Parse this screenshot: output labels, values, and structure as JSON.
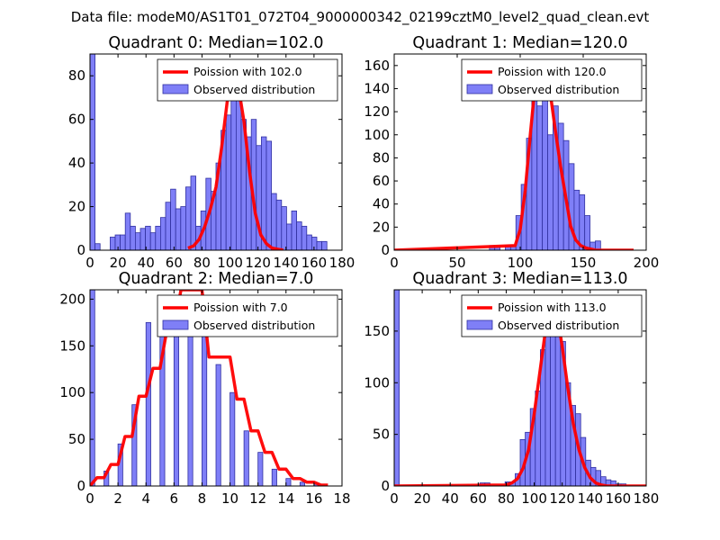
{
  "figure_title": "Data file: modeM0/AS1T01_072T04_9000000342_02199cztM0_level2_quad_clean.evt",
  "colors": {
    "bar_fill": "#7f7ff7",
    "bar_edge": "#3030a0",
    "poisson_line": "#ff0000"
  },
  "chart_data": [
    {
      "type": "bar",
      "title": "Quadrant 0: Median=102.0",
      "xlim": [
        0,
        180
      ],
      "ylim": [
        0,
        90
      ],
      "xticks": [
        0,
        20,
        40,
        60,
        80,
        100,
        120,
        140,
        160,
        180
      ],
      "yticks": [
        0,
        20,
        40,
        60,
        80
      ],
      "bin_width": 3.6,
      "legend": [
        "Poission with 102.0",
        "Observed distribution"
      ],
      "bars": [
        [
          0,
          90
        ],
        [
          3.6,
          3
        ],
        [
          14.4,
          6
        ],
        [
          18,
          7
        ],
        [
          21.6,
          7
        ],
        [
          25.2,
          17
        ],
        [
          28.8,
          11
        ],
        [
          32.4,
          8
        ],
        [
          36,
          10
        ],
        [
          39.6,
          11
        ],
        [
          43.2,
          8
        ],
        [
          46.8,
          11
        ],
        [
          50.4,
          15
        ],
        [
          54,
          22
        ],
        [
          57.6,
          28
        ],
        [
          61.2,
          19
        ],
        [
          64.8,
          20
        ],
        [
          68.4,
          29
        ],
        [
          72,
          34
        ],
        [
          75.6,
          11
        ],
        [
          79.2,
          18
        ],
        [
          82.8,
          33
        ],
        [
          86.4,
          27
        ],
        [
          90,
          40
        ],
        [
          93.6,
          55
        ],
        [
          97.2,
          62
        ],
        [
          100.8,
          75
        ],
        [
          104.4,
          80
        ],
        [
          108,
          60
        ],
        [
          111.6,
          52
        ],
        [
          115.2,
          60
        ],
        [
          118.8,
          48
        ],
        [
          122.4,
          52
        ],
        [
          126,
          50
        ],
        [
          129.6,
          26
        ],
        [
          133.2,
          23
        ],
        [
          136.8,
          20
        ],
        [
          140.4,
          12
        ],
        [
          144,
          18
        ],
        [
          147.6,
          13
        ],
        [
          151.2,
          11
        ],
        [
          154.8,
          7
        ],
        [
          158.4,
          6
        ],
        [
          162,
          4
        ],
        [
          165.6,
          4
        ]
      ],
      "poisson_line": {
        "x": [
          70,
          74,
          78,
          82,
          86,
          90,
          94,
          98,
          102,
          106,
          110,
          114,
          118,
          122,
          126,
          130,
          134,
          138
        ],
        "y": [
          1,
          2,
          5,
          11,
          19,
          29,
          47,
          68,
          79,
          75,
          59,
          36,
          17,
          7,
          3,
          1,
          0.5,
          0
        ]
      }
    },
    {
      "type": "bar",
      "title": "Quadrant 1: Median=120.0",
      "xlim": [
        0,
        200
      ],
      "ylim": [
        0,
        170
      ],
      "xticks": [
        0,
        50,
        100,
        150,
        200
      ],
      "yticks": [
        0,
        20,
        40,
        60,
        80,
        100,
        120,
        140,
        160
      ],
      "bin_width": 4.2,
      "legend": [
        "Poission with 120.0",
        "Observed distribution"
      ],
      "bars": [
        [
          75.6,
          4
        ],
        [
          79.8,
          3
        ],
        [
          88.2,
          4
        ],
        [
          92.4,
          4
        ],
        [
          96.6,
          30
        ],
        [
          100.8,
          57
        ],
        [
          105,
          97
        ],
        [
          109.2,
          135
        ],
        [
          113.4,
          125
        ],
        [
          117.6,
          140
        ],
        [
          121.8,
          100
        ],
        [
          126,
          125
        ],
        [
          130.2,
          110
        ],
        [
          134.4,
          95
        ],
        [
          138.6,
          75
        ],
        [
          142.8,
          52
        ],
        [
          147,
          48
        ],
        [
          151.2,
          30
        ],
        [
          155.4,
          7
        ],
        [
          159.6,
          8
        ]
      ],
      "poisson_line": {
        "x": [
          0,
          96,
          100,
          104,
          108,
          112,
          116,
          120,
          124,
          128,
          132,
          136,
          140,
          144,
          148,
          152,
          156,
          160,
          190
        ],
        "y": [
          0,
          4,
          18,
          52,
          100,
          145,
          160,
          160,
          135,
          103,
          73,
          47,
          21,
          9,
          4,
          2,
          1,
          0,
          0
        ]
      }
    },
    {
      "type": "bar",
      "title": "Quadrant 2: Median=7.0",
      "xlim": [
        0,
        18
      ],
      "ylim": [
        0,
        210
      ],
      "xticks": [
        0,
        2,
        4,
        6,
        8,
        10,
        12,
        14,
        16,
        18
      ],
      "yticks": [
        0,
        50,
        100,
        150,
        200
      ],
      "bin_width": 0.34,
      "legend": [
        "Poission with 7.0",
        "Observed distribution"
      ],
      "bars": [
        [
          0,
          215
        ],
        [
          1,
          16
        ],
        [
          2,
          45
        ],
        [
          3,
          87
        ],
        [
          4,
          175
        ],
        [
          5,
          190
        ],
        [
          6,
          195
        ],
        [
          7,
          195
        ],
        [
          8,
          180
        ],
        [
          9,
          130
        ],
        [
          10,
          100
        ],
        [
          11,
          59
        ],
        [
          12,
          36
        ],
        [
          13,
          18
        ],
        [
          14,
          8
        ],
        [
          15,
          4
        ],
        [
          16,
          2
        ]
      ],
      "poisson_line": {
        "x": [
          0,
          0.5,
          1,
          1.5,
          2,
          2.5,
          3,
          3.5,
          4,
          4.5,
          5,
          5.5,
          6,
          6.5,
          7,
          7.5,
          8,
          8.5,
          9,
          9.5,
          10,
          10.5,
          11,
          11.5,
          12,
          12.5,
          13,
          13.5,
          14,
          14.5,
          15,
          15.5,
          16,
          16.5,
          17
        ],
        "y": [
          0,
          9,
          9,
          23,
          23,
          53,
          53,
          96,
          96,
          126,
          126,
          168,
          168,
          210,
          210,
          210,
          210,
          138,
          138,
          138,
          138,
          93,
          93,
          59,
          59,
          36,
          36,
          18,
          18,
          8,
          8,
          4,
          4,
          1,
          1
        ]
      }
    },
    {
      "type": "bar",
      "title": "Quadrant 3: Median=113.0",
      "xlim": [
        0,
        180
      ],
      "ylim": [
        0,
        190
      ],
      "xticks": [
        0,
        20,
        40,
        60,
        80,
        100,
        120,
        140,
        160,
        180
      ],
      "yticks": [
        0,
        50,
        100,
        150
      ],
      "bin_width": 3.6,
      "legend": [
        "Poission with 113.0",
        "Observed distribution"
      ],
      "bars": [
        [
          0,
          190
        ],
        [
          61.2,
          3
        ],
        [
          64.8,
          3
        ],
        [
          79.2,
          4
        ],
        [
          82.8,
          4
        ],
        [
          86.4,
          12
        ],
        [
          90,
          45
        ],
        [
          93.6,
          52
        ],
        [
          97.2,
          75
        ],
        [
          100.8,
          92
        ],
        [
          104.4,
          132
        ],
        [
          108,
          150
        ],
        [
          111.6,
          172
        ],
        [
          115.2,
          148
        ],
        [
          118.8,
          140
        ],
        [
          122.4,
          100
        ],
        [
          126,
          78
        ],
        [
          129.6,
          70
        ],
        [
          133.2,
          47
        ],
        [
          136.8,
          25
        ],
        [
          140.4,
          18
        ],
        [
          144,
          15
        ],
        [
          147.6,
          9
        ],
        [
          151.2,
          6
        ],
        [
          154.8,
          5
        ],
        [
          158.4,
          2
        ],
        [
          162,
          2
        ]
      ],
      "poisson_line": {
        "x": [
          0,
          80,
          84,
          88,
          92,
          96,
          100,
          104,
          108,
          112,
          116,
          120,
          124,
          128,
          132,
          136,
          140,
          144,
          148,
          152,
          180
        ],
        "y": [
          0,
          1,
          3,
          7,
          17,
          35,
          70,
          110,
          150,
          183,
          170,
          135,
          95,
          60,
          35,
          18,
          8,
          3,
          1,
          0,
          0
        ]
      }
    }
  ]
}
